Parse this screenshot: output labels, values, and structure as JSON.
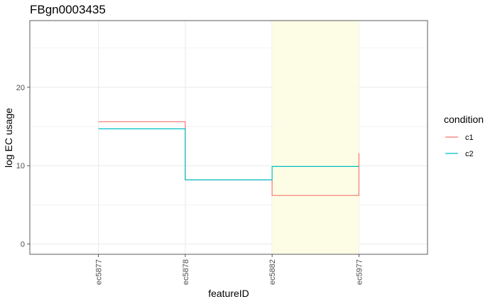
{
  "chart_data": {
    "type": "line",
    "title": "FBgn0003435",
    "xlabel": "featureID",
    "ylabel": "log EC usage",
    "categories": [
      "ec5877",
      "ec5878",
      "ec5882",
      "ec5977"
    ],
    "y_ticks": [
      0,
      10,
      20
    ],
    "ylim": [
      -1.3,
      28.5
    ],
    "grid": true,
    "step": true,
    "highlight_region": {
      "from": "ec5882",
      "to": "ec5977",
      "color": "#fdfde3"
    },
    "series": [
      {
        "name": "c1",
        "color": "#f8766d",
        "values": [
          15.6,
          8.2,
          6.2,
          11.6
        ]
      },
      {
        "name": "c2",
        "color": "#00bfc4",
        "values": [
          14.7,
          8.2,
          9.9,
          9.9
        ]
      }
    ],
    "legend": {
      "title": "condition",
      "position": "right"
    }
  }
}
